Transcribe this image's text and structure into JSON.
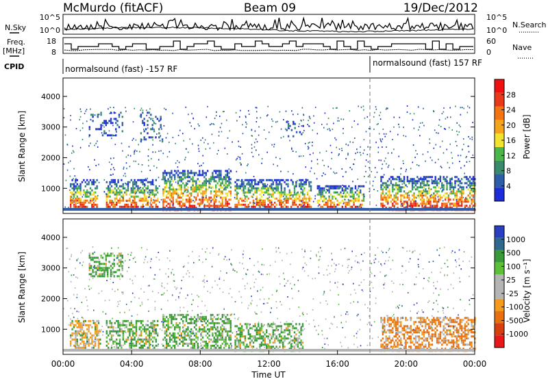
{
  "header": {
    "station": "McMurdo (fitACF)",
    "beam": "Beam 09",
    "date": "19/Dec/2012"
  },
  "top_panels": {
    "nsky_label": "N.Sky",
    "nsky_ticks": [
      "10^5",
      "10^0"
    ],
    "nsearch_label": "N.Search",
    "nsearch_ticks": [
      "10^5",
      "10^0"
    ],
    "freq_label": "Freq.",
    "freq_unit": "[MHz]",
    "freq_ticks": [
      "18",
      "8"
    ],
    "nave_label": "Nave",
    "nave_ticks": [
      "60",
      "0"
    ],
    "cpid_label": "CPID",
    "cpid_segments": [
      {
        "label": "normalsound (fast) -157 RF",
        "start_hour": 0.0
      },
      {
        "label": "normalsound (fast) 157 RF",
        "start_hour": 18.1
      }
    ]
  },
  "colorbars": {
    "power": {
      "title": "Power [dB]",
      "ticks": [
        "28",
        "24",
        "20",
        "16",
        "12",
        "8",
        "4"
      ]
    },
    "velocity": {
      "title": "Velocity [m s⁻¹]",
      "ticks": [
        "1000",
        "500",
        "100",
        "25",
        "-25",
        "-100",
        "-500",
        "-1000"
      ]
    }
  },
  "chart_data": [
    {
      "type": "heatmap",
      "title": "",
      "xlabel": "",
      "ylabel": "Slant Range [km]",
      "xlim": [
        0,
        24
      ],
      "ylim": [
        180,
        4600
      ],
      "y_ticks": [
        1000,
        2000,
        3000,
        4000
      ],
      "colorbar_title": "Power [dB]",
      "colorbar_range": [
        0,
        30
      ],
      "colorbar_colors": [
        "#1c2dd8",
        "#2e5ea9",
        "#3a8a6c",
        "#4cb64a",
        "#f2e42c",
        "#f4a51c",
        "#f47414",
        "#e83a1a",
        "#ef1010"
      ],
      "scatter_regions": [
        {
          "start_hour": 0.4,
          "end_hour": 2.0,
          "range_km": [
            300,
            1300
          ]
        },
        {
          "start_hour": 2.5,
          "end_hour": 5.5,
          "range_km": [
            300,
            1300
          ]
        },
        {
          "start_hour": 5.8,
          "end_hour": 9.8,
          "range_km": [
            300,
            1600
          ]
        },
        {
          "start_hour": 10.0,
          "end_hour": 14.5,
          "range_km": [
            300,
            1300
          ]
        },
        {
          "start_hour": 14.8,
          "end_hour": 17.5,
          "range_km": [
            300,
            1100
          ]
        },
        {
          "start_hour": 18.5,
          "end_hour": 24.0,
          "range_km": [
            300,
            1400
          ]
        },
        {
          "start_hour": 1.5,
          "end_hour": 3.5,
          "range_km": [
            2700,
            3500
          ]
        },
        {
          "start_hour": 4.5,
          "end_hour": 5.8,
          "range_km": [
            2500,
            3500
          ]
        },
        {
          "start_hour": 13.0,
          "end_hour": 14.0,
          "range_km": [
            2700,
            3200
          ]
        }
      ]
    },
    {
      "type": "heatmap",
      "title": "",
      "xlabel": "Time UT",
      "ylabel": "Slant Range [km]",
      "xlim": [
        0,
        24
      ],
      "ylim": [
        180,
        4600
      ],
      "x_ticks": [
        "00:00",
        "04:00",
        "08:00",
        "12:00",
        "16:00",
        "20:00",
        "00:00"
      ],
      "y_ticks": [
        1000,
        2000,
        3000,
        4000
      ],
      "colorbar_title": "Velocity [m s⁻¹]",
      "colorbar_range": [
        -1000,
        1000
      ],
      "colorbar_colors": [
        "#e81818",
        "#d64010",
        "#e8700e",
        "#f59a1a",
        "#b4b4b4",
        "#b4b4b4",
        "#5cc038",
        "#3a9a3a",
        "#2e6a8e",
        "#2a3ec2"
      ],
      "scatter_regions": [
        {
          "start_hour": 0.4,
          "end_hour": 2.2,
          "range_km": [
            300,
            1300
          ]
        },
        {
          "start_hour": 2.5,
          "end_hour": 5.5,
          "range_km": [
            300,
            1300
          ]
        },
        {
          "start_hour": 5.8,
          "end_hour": 9.8,
          "range_km": [
            300,
            1500
          ]
        },
        {
          "start_hour": 10.0,
          "end_hour": 14.0,
          "range_km": [
            300,
            1200
          ]
        },
        {
          "start_hour": 18.5,
          "end_hour": 24.0,
          "range_km": [
            300,
            1400
          ]
        },
        {
          "start_hour": 1.5,
          "end_hour": 3.5,
          "range_km": [
            2700,
            3500
          ]
        }
      ]
    }
  ]
}
